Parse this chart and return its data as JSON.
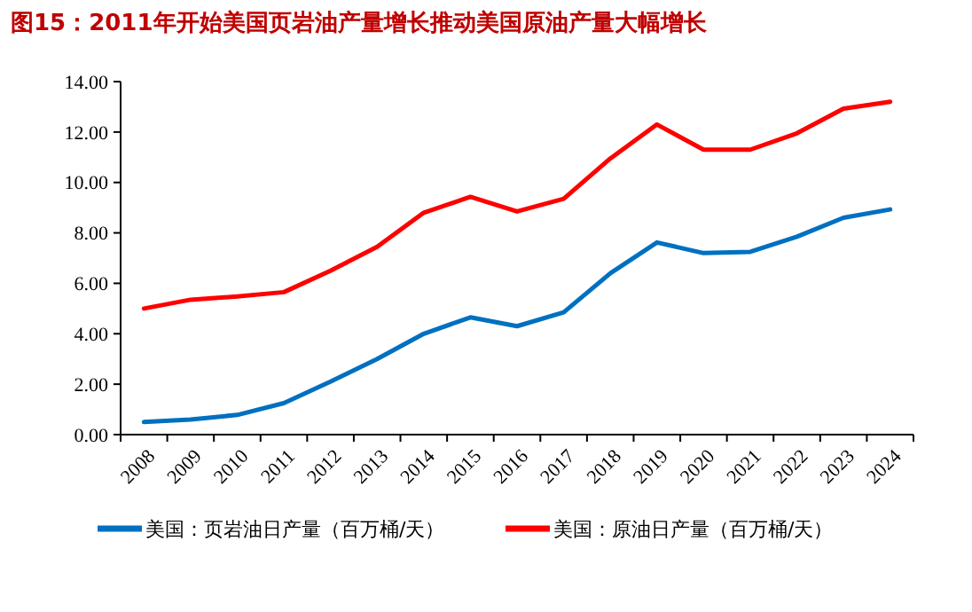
{
  "chart_data": {
    "type": "line",
    "title": "图15：2011年开始美国页岩油产量增长推动美国原油产量大幅增长",
    "categories": [
      "2008",
      "2009",
      "2010",
      "2011",
      "2012",
      "2013",
      "2014",
      "2015",
      "2016",
      "2017",
      "2018",
      "2019",
      "2020",
      "2021",
      "2022",
      "2023",
      "2024"
    ],
    "series": [
      {
        "name": "美国：页岩油日产量（百万桶/天）",
        "color": "#0070c0",
        "values": [
          0.5,
          0.6,
          0.78,
          1.25,
          2.1,
          3.0,
          4.0,
          4.65,
          4.3,
          4.85,
          6.4,
          7.62,
          7.2,
          7.25,
          7.85,
          8.6,
          8.93
        ]
      },
      {
        "name": "美国：原油日产量（百万桶/天）",
        "color": "#ff0000",
        "values": [
          5.0,
          5.35,
          5.48,
          5.65,
          6.5,
          7.45,
          8.8,
          9.43,
          8.85,
          9.35,
          10.95,
          12.3,
          11.3,
          11.3,
          11.95,
          12.93,
          13.2
        ]
      }
    ],
    "ylim": [
      0,
      14
    ],
    "yticks": [
      {
        "value": 0,
        "label": "0.00"
      },
      {
        "value": 2,
        "label": "2.00"
      },
      {
        "value": 4,
        "label": "4.00"
      },
      {
        "value": 6,
        "label": "6.00"
      },
      {
        "value": 8,
        "label": "8.00"
      },
      {
        "value": 10,
        "label": "10.00"
      },
      {
        "value": 12,
        "label": "12.00"
      },
      {
        "value": 14,
        "label": "14.00"
      }
    ],
    "legend": "bottom",
    "marker": "none",
    "line_style": "solid"
  }
}
